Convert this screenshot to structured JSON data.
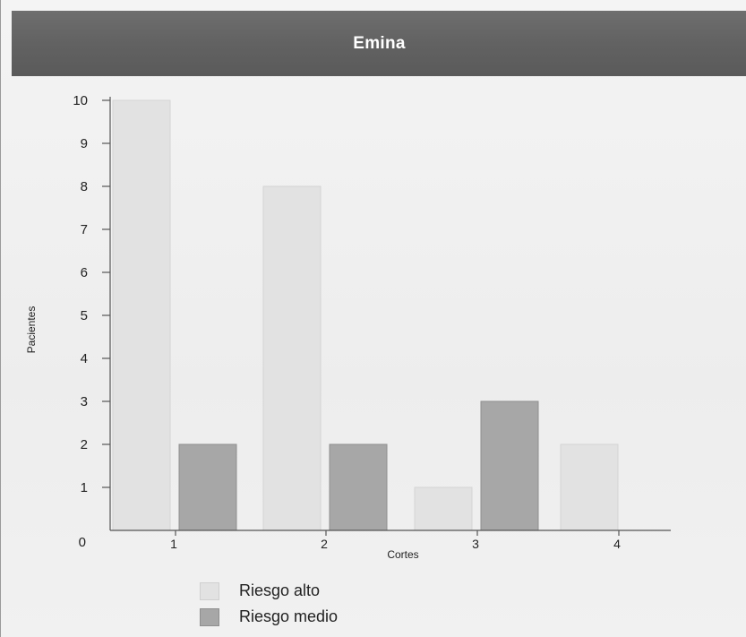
{
  "chart_data": {
    "type": "bar",
    "title": "Emina",
    "xlabel": "Cortes",
    "ylabel": "Pacientes",
    "categories": [
      "1",
      "2",
      "3",
      "4"
    ],
    "series": [
      {
        "name": "Riesgo alto",
        "values": [
          10,
          8,
          1,
          2
        ],
        "color": "#e2e2e2"
      },
      {
        "name": "Riesgo medio",
        "values": [
          2,
          2,
          3,
          0
        ],
        "color": "#a7a7a7"
      }
    ],
    "ylim": [
      0,
      10
    ],
    "yticks": [
      "0",
      "1",
      "2",
      "3",
      "4",
      "5",
      "6",
      "7",
      "8",
      "9",
      "10"
    ],
    "grid": false,
    "legend_position": "bottom-left"
  }
}
